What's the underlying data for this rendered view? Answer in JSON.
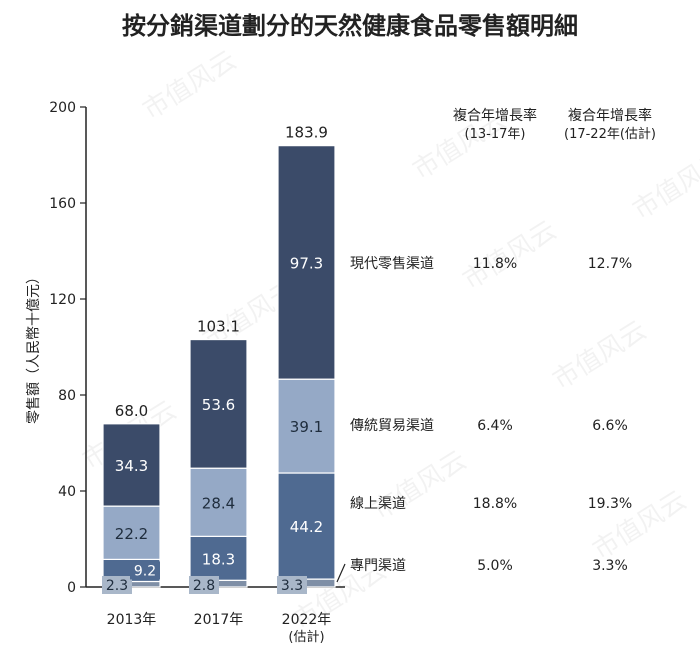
{
  "chart_data": {
    "type": "bar",
    "stacked": true,
    "title": "按分銷渠道劃分的天然健康食品零售額明細",
    "ylabel": "零售額（人民幣十億元）",
    "ylim": [
      0,
      200
    ],
    "yticks": [
      0,
      40,
      80,
      120,
      160,
      200
    ],
    "categories": [
      "2013年",
      "2017年",
      "2022年"
    ],
    "category_sublabels": [
      "",
      "",
      "(估計)"
    ],
    "totals": [
      "68.0",
      "103.1",
      "183.9"
    ],
    "series": [
      {
        "name": "專門渠道",
        "values": [
          2.3,
          2.8,
          3.3
        ],
        "labels": [
          "2.3",
          "2.8",
          "3.3"
        ],
        "color": "#7f8fa6",
        "label_color": "#1f2d3d"
      },
      {
        "name": "線上渠道",
        "values": [
          9.2,
          18.3,
          44.2
        ],
        "labels": [
          "9.2",
          "18.3",
          "44.2"
        ],
        "color": "#4f6a91",
        "label_color": "#ffffff"
      },
      {
        "name": "傳統貿易渠道",
        "values": [
          22.2,
          28.4,
          39.1
        ],
        "labels": [
          "22.2",
          "28.4",
          "39.1"
        ],
        "color": "#95a9c6",
        "label_color": "#1f2d3d"
      },
      {
        "name": "現代零售渠道",
        "values": [
          34.3,
          53.6,
          97.3
        ],
        "labels": [
          "34.3",
          "53.6",
          "97.3"
        ],
        "color": "#3b4b69",
        "label_color": "#ffffff"
      }
    ],
    "cagr_headers": [
      [
        "複合年增長率",
        "(13-17年)"
      ],
      [
        "複合年增長率",
        "(17-22年(估計)"
      ]
    ],
    "cagr_rows": [
      {
        "series": "現代零售渠道",
        "cagr_13_17": "11.8%",
        "cagr_17_22": "12.7%"
      },
      {
        "series": "傳統貿易渠道",
        "cagr_13_17": "6.4%",
        "cagr_17_22": "6.6%"
      },
      {
        "series": "線上渠道",
        "cagr_13_17": "18.8%",
        "cagr_17_22": "19.3%"
      },
      {
        "series": "專門渠道",
        "cagr_13_17": "5.0%",
        "cagr_17_22": "3.3%"
      }
    ],
    "watermark": "市值风云"
  }
}
